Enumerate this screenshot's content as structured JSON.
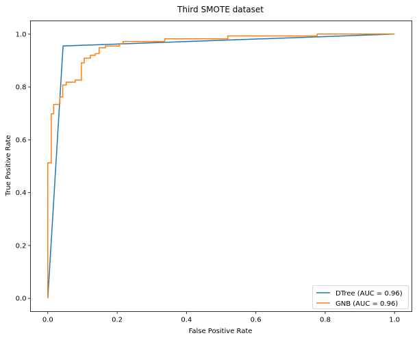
{
  "chart_data": {
    "type": "line",
    "title": "Third SMOTE dataset",
    "xlabel": "False Positive Rate",
    "ylabel": "True Positive Rate",
    "xlim": [
      -0.05,
      1.05
    ],
    "ylim": [
      -0.05,
      1.05
    ],
    "xticks": [
      "0.0",
      "0.2",
      "0.4",
      "0.6",
      "0.8",
      "1.0"
    ],
    "yticks": [
      "0.0",
      "0.2",
      "0.4",
      "0.6",
      "0.8",
      "1.0"
    ],
    "grid": false,
    "legend_position": "lower-right",
    "series": [
      {
        "name": "DTree (AUC = 0.96)",
        "color": "#1f77b4",
        "x": [
          0,
          0.044,
          1
        ],
        "y": [
          0,
          0.955,
          1
        ]
      },
      {
        "name": "GNB (AUC = 0.96)",
        "color": "#ff7f0e",
        "x": [
          0,
          0,
          0.01,
          0.01,
          0.017,
          0.017,
          0.035,
          0.035,
          0.043,
          0.043,
          0.053,
          0.053,
          0.079,
          0.079,
          0.097,
          0.097,
          0.105,
          0.105,
          0.123,
          0.123,
          0.137,
          0.137,
          0.148,
          0.148,
          0.166,
          0.166,
          0.207,
          0.207,
          0.217,
          0.217,
          0.337,
          0.337,
          0.519,
          0.519,
          0.777,
          0.777,
          1
        ],
        "y": [
          0,
          0.513,
          0.513,
          0.698,
          0.698,
          0.734,
          0.734,
          0.762,
          0.762,
          0.807,
          0.807,
          0.818,
          0.818,
          0.826,
          0.826,
          0.891,
          0.891,
          0.909,
          0.909,
          0.92,
          0.92,
          0.926,
          0.926,
          0.948,
          0.948,
          0.955,
          0.955,
          0.964,
          0.964,
          0.972,
          0.972,
          0.982,
          0.982,
          0.993,
          0.993,
          1.0,
          1.0
        ]
      }
    ]
  }
}
